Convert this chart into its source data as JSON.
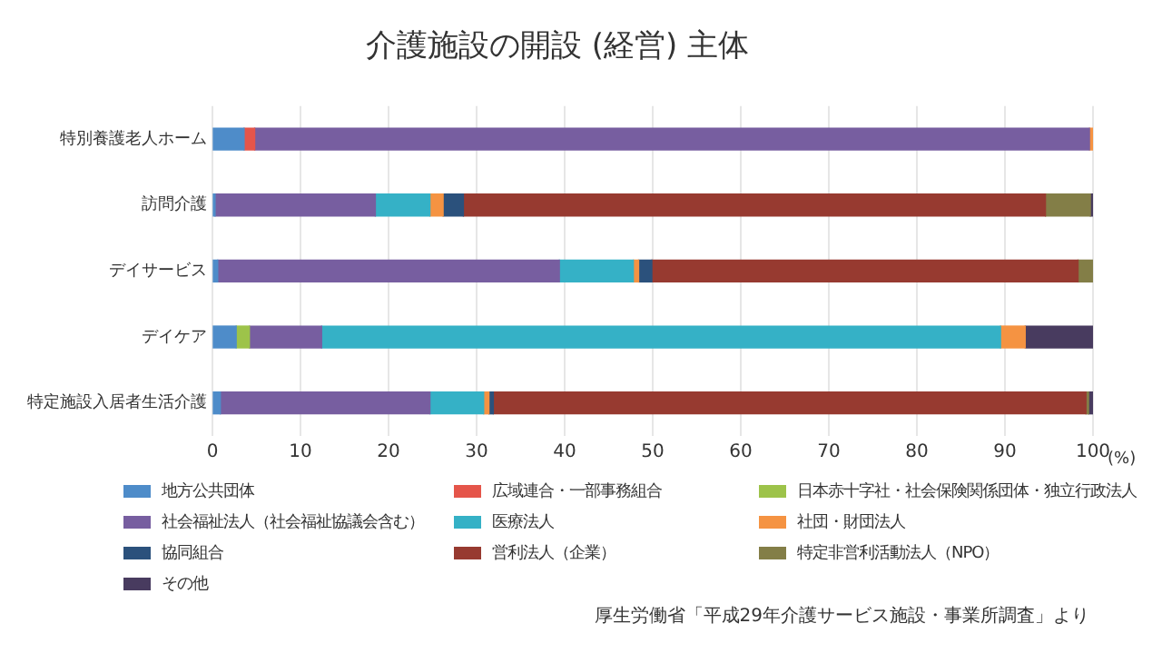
{
  "chart_data": {
    "type": "bar",
    "title": "介護施設の開設 (経営) 主体",
    "orientation": "horizontal",
    "stacked": true,
    "categories": [
      "特別養護老人ホーム",
      "訪問介護",
      "デイサービス",
      "デイケア",
      "特定施設入居者生活介護"
    ],
    "series": [
      {
        "name": "地方公共団体",
        "color": "#4e8cc9",
        "values": [
          3.6,
          0.3,
          0.6,
          2.7,
          0.9
        ]
      },
      {
        "name": "広域連合・一部事務組合",
        "color": "#e5554a",
        "values": [
          1.2,
          null,
          null,
          null,
          null
        ]
      },
      {
        "name": "日本赤十字社・社会保険関係団体・独立行政法人",
        "color": "#9dc34a",
        "values": [
          null,
          null,
          null,
          1.5,
          null
        ]
      },
      {
        "name": "社会福祉法人（社会福祉協議会含む）",
        "color": "#775ea0",
        "values": [
          94.8,
          18.2,
          38.8,
          8.2,
          23.8
        ]
      },
      {
        "name": "医療法人",
        "color": "#35b1c6",
        "values": [
          null,
          6.2,
          8.4,
          77.1,
          6.1
        ]
      },
      {
        "name": "社団・財団法人",
        "color": "#f59342",
        "values": [
          0.4,
          1.5,
          0.6,
          2.8,
          0.6
        ]
      },
      {
        "name": "協同組合",
        "color": "#2b517c",
        "values": [
          null,
          2.3,
          1.5,
          null,
          0.5
        ]
      },
      {
        "name": "営利法人（企業）",
        "color": "#973a30",
        "values": [
          null,
          66.1,
          48.4,
          null,
          67.3
        ]
      },
      {
        "name": "特定非営利活動法人（NPO）",
        "color": "#837e47",
        "values": [
          null,
          5.1,
          1.7,
          null,
          0.3
        ]
      },
      {
        "name": "その他",
        "color": "#483b5f",
        "values": [
          null,
          0.3,
          null,
          7.7,
          0.5
        ]
      }
    ],
    "xlabel": "(%)",
    "xlim": [
      0,
      100
    ],
    "xticks": [
      0,
      10,
      20,
      30,
      40,
      50,
      60,
      70,
      80,
      90,
      100
    ],
    "grid": "x",
    "legend": "bottom",
    "annotations": [
      "厚生労働省「平成29年介護サービス施設・事業所調査」より"
    ]
  }
}
